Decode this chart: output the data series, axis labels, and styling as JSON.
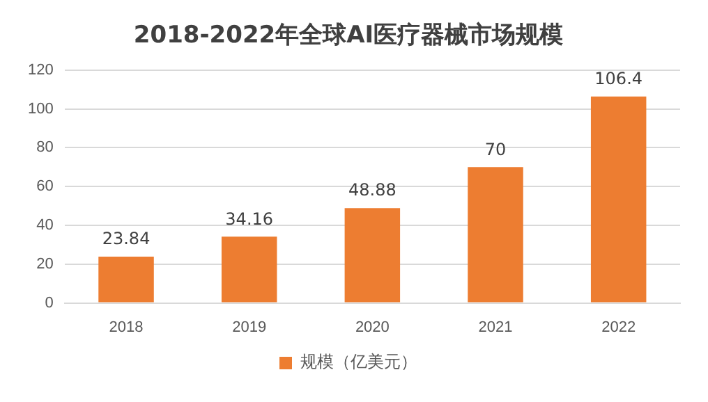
{
  "chart_data": {
    "type": "bar",
    "title": "2018-2022年全球AI医疗器械市场规模",
    "categories": [
      "2018",
      "2019",
      "2020",
      "2021",
      "2022"
    ],
    "series": [
      {
        "name": "规模（亿美元）",
        "color": "#ed7d31",
        "values": [
          23.84,
          34.16,
          48.88,
          70,
          106.4
        ]
      }
    ],
    "ylim": [
      0,
      120
    ],
    "yticks": [
      0,
      20,
      40,
      60,
      80,
      100,
      120
    ],
    "grid": "y",
    "legend": "bottom",
    "data_labels": true
  }
}
